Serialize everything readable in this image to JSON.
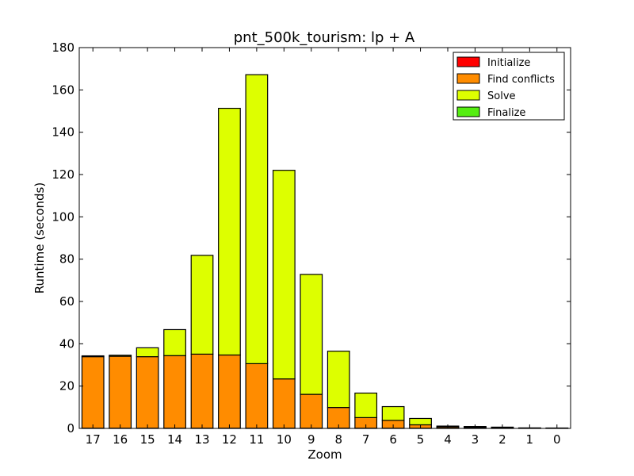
{
  "chart_data": {
    "type": "bar",
    "stacked": true,
    "title": "pnt_500k_tourism: lp + A",
    "xlabel": "Zoom",
    "ylabel": "Runtime (seconds)",
    "ylim": [
      0,
      180
    ],
    "yticks": [
      0,
      20,
      40,
      60,
      80,
      100,
      120,
      140,
      160,
      180
    ],
    "categories": [
      "17",
      "16",
      "15",
      "14",
      "13",
      "12",
      "11",
      "10",
      "9",
      "8",
      "7",
      "6",
      "5",
      "4",
      "3",
      "2",
      "1",
      "0"
    ],
    "series": [
      {
        "name": "Initialize",
        "color": "#ff0000",
        "values": [
          0.1,
          0.1,
          0.1,
          0.1,
          0.1,
          0.1,
          0.1,
          0.1,
          0.1,
          0.1,
          0.1,
          0.1,
          0.1,
          0.1,
          0.1,
          0.1,
          0.05,
          0.05
        ]
      },
      {
        "name": "Find conflicts",
        "color": "#ff8c00",
        "values": [
          33.8,
          34.0,
          33.8,
          34.3,
          35.0,
          34.6,
          30.5,
          23.3,
          16.0,
          9.8,
          5.0,
          3.7,
          1.6,
          0.6,
          0.4,
          0.2,
          0.1,
          0.05
        ]
      },
      {
        "name": "Solve",
        "color": "#ddff00",
        "values": [
          0.4,
          0.5,
          4.2,
          12.3,
          46.7,
          116.6,
          136.6,
          98.6,
          56.7,
          26.6,
          11.6,
          6.5,
          3.0,
          0.4,
          0.4,
          0.3,
          0.1,
          0.1
        ]
      },
      {
        "name": "Finalize",
        "color": "#55ee11",
        "values": [
          0.0,
          0.0,
          0.0,
          0.0,
          0.0,
          0.0,
          0.0,
          0.0,
          0.0,
          0.0,
          0.0,
          0.0,
          0.0,
          0.0,
          0.0,
          0.0,
          0.0,
          0.0
        ]
      }
    ],
    "legend_position": "top-right",
    "grid": false
  }
}
